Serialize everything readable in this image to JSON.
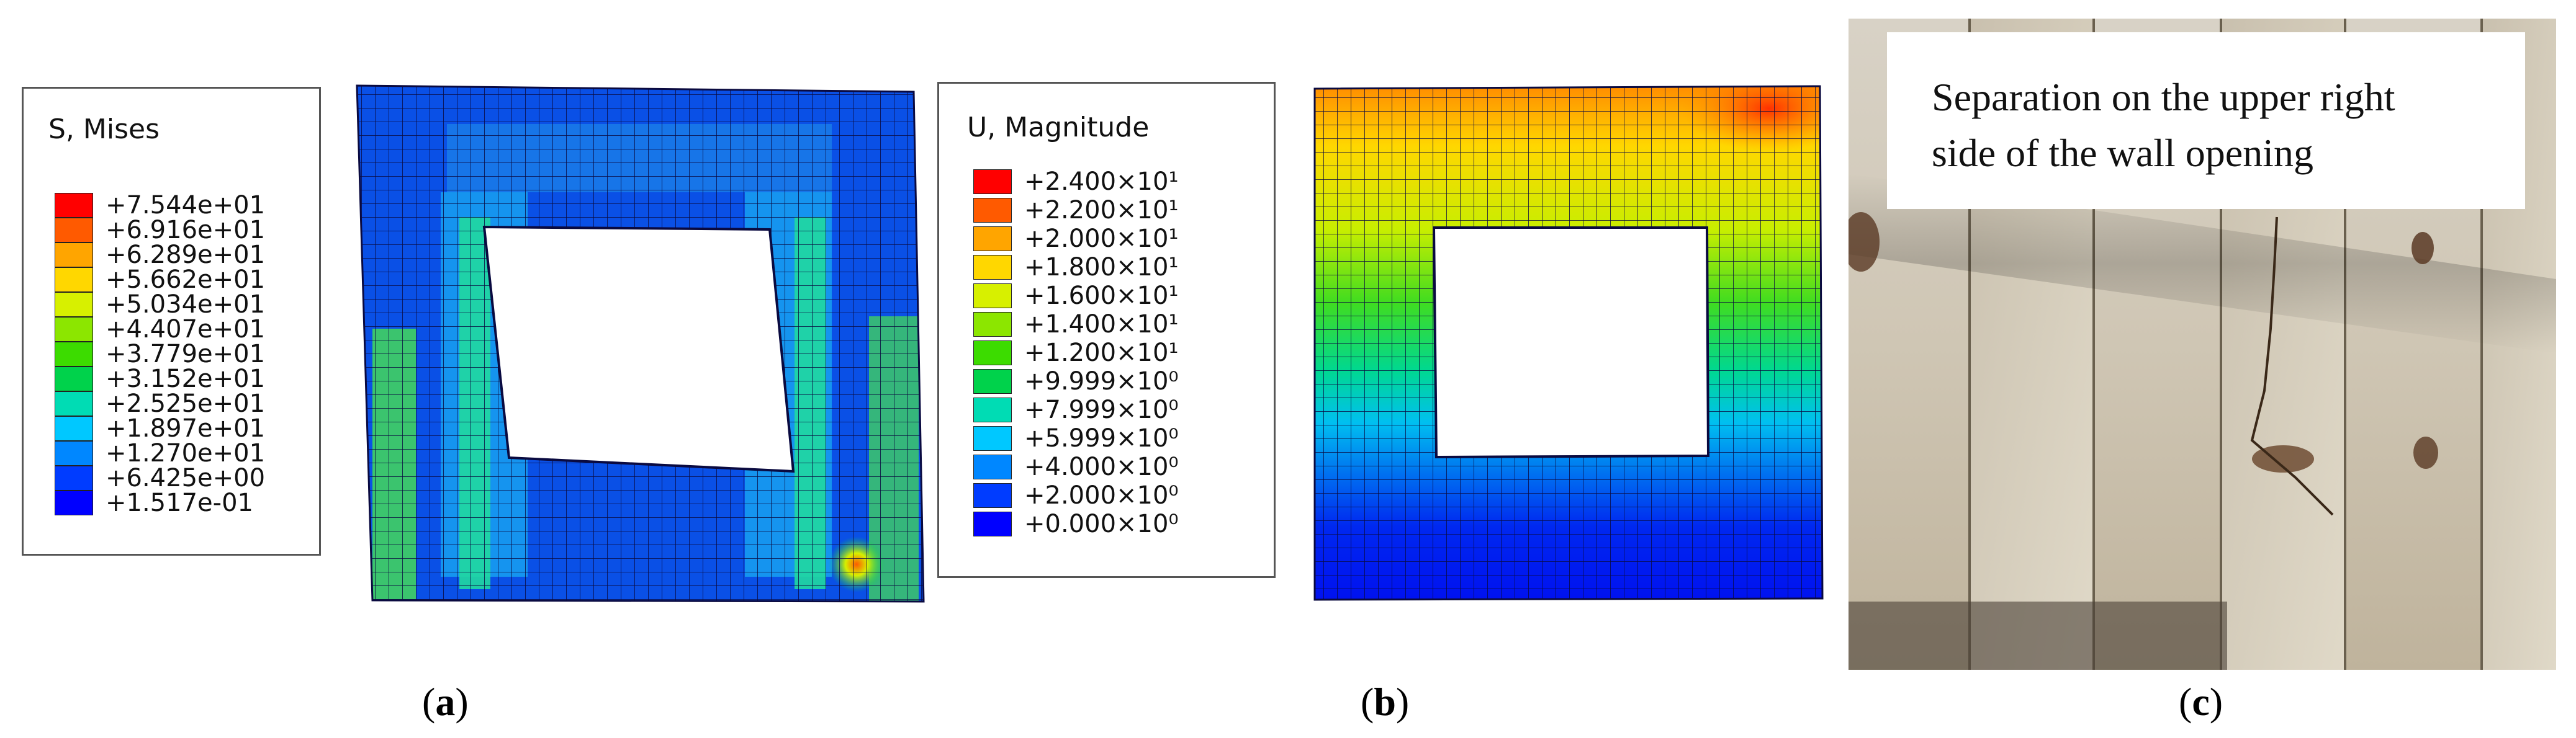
{
  "panel_a": {
    "legend_title": "S, Mises",
    "legend_entries": [
      {
        "label": "+7.544e+01",
        "color": "#ff0000"
      },
      {
        "label": "+6.916e+01",
        "color": "#ff5a00"
      },
      {
        "label": "+6.289e+01",
        "color": "#ffa500"
      },
      {
        "label": "+5.662e+01",
        "color": "#ffd700"
      },
      {
        "label": "+5.034e+01",
        "color": "#d7f000"
      },
      {
        "label": "+4.407e+01",
        "color": "#8ce600"
      },
      {
        "label": "+3.779e+01",
        "color": "#3cdc00"
      },
      {
        "label": "+3.152e+01",
        "color": "#00d24b"
      },
      {
        "label": "+2.525e+01",
        "color": "#00dcb4"
      },
      {
        "label": "+1.897e+01",
        "color": "#00c8ff"
      },
      {
        "label": "+1.270e+01",
        "color": "#0087ff"
      },
      {
        "label": "+6.425e+00",
        "color": "#003cff"
      },
      {
        "label": "+1.517e-01",
        "color": "#0000ff"
      }
    ],
    "caption_open": "(",
    "caption_letter": "a",
    "caption_close": ")"
  },
  "panel_b": {
    "legend_title": "U, Magnitude",
    "legend_entries": [
      {
        "label": "+2.400×10¹",
        "color": "#ff0000"
      },
      {
        "label": "+2.200×10¹",
        "color": "#ff5a00"
      },
      {
        "label": "+2.000×10¹",
        "color": "#ffa500"
      },
      {
        "label": "+1.800×10¹",
        "color": "#ffd700"
      },
      {
        "label": "+1.600×10¹",
        "color": "#d7f000"
      },
      {
        "label": "+1.400×10¹",
        "color": "#8ce600"
      },
      {
        "label": "+1.200×10¹",
        "color": "#3cdc00"
      },
      {
        "label": "+9.999×10⁰",
        "color": "#00d24b"
      },
      {
        "label": "+7.999×10⁰",
        "color": "#00dcb4"
      },
      {
        "label": "+5.999×10⁰",
        "color": "#00c8ff"
      },
      {
        "label": "+4.000×10⁰",
        "color": "#0087ff"
      },
      {
        "label": "+2.000×10⁰",
        "color": "#003cff"
      },
      {
        "label": "+0.000×10⁰",
        "color": "#0000ff"
      }
    ],
    "caption_open": "(",
    "caption_letter": "b",
    "caption_close": ")"
  },
  "panel_c": {
    "annotation_line1": "Separation on the upper right",
    "annotation_line2": "side of the wall opening",
    "caption_open": "(",
    "caption_letter": "c",
    "caption_close": ")"
  }
}
